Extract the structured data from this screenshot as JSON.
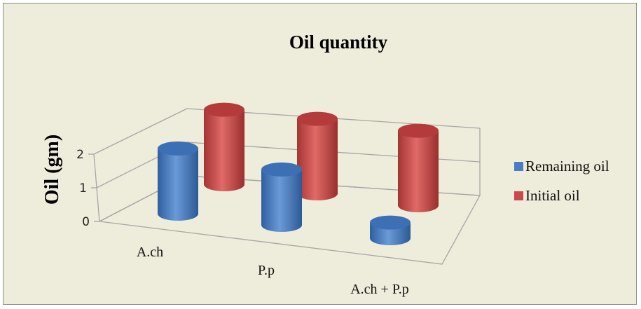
{
  "chart_data": {
    "type": "bar",
    "style": "3d-cylinder",
    "title": "Oil quantity",
    "xlabel": "",
    "ylabel": "Oil (gm)",
    "categories": [
      "A.ch",
      "P.p",
      "A.ch + P.p"
    ],
    "series": [
      {
        "name": "Remaining oil",
        "values": [
          1.33,
          1.13,
          0.32
        ],
        "color": "#4a7ec4"
      },
      {
        "name": "Initial oil",
        "values": [
          1.52,
          1.52,
          1.52
        ],
        "color": "#c94a48"
      }
    ],
    "ylim": [
      0,
      2
    ],
    "yticks": [
      "0",
      "1",
      "2"
    ],
    "grid": true,
    "legend": "right"
  }
}
